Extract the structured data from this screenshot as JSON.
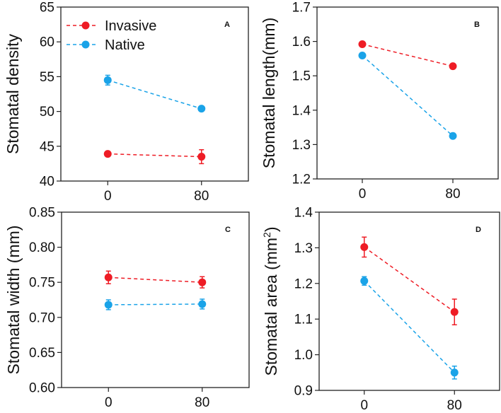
{
  "chart_data": [
    {
      "type": "line",
      "panel_label": "A",
      "ylabel": "Stomatal density",
      "ylabel_sup": "",
      "ylabel_tail": "",
      "x": [
        0,
        80
      ],
      "xticks": [
        "0",
        "80"
      ],
      "xlim": [
        -40,
        120
      ],
      "ylim": [
        40,
        65
      ],
      "yticks": [
        "40",
        "45",
        "50",
        "55",
        "60",
        "65"
      ],
      "legend": {
        "placement": "top-left",
        "entries": [
          "Invasive",
          "Native"
        ]
      },
      "series": [
        {
          "name": "Invasive",
          "color": "#ee1c25",
          "values": [
            43.9,
            43.5
          ],
          "errors": [
            0.3,
            1.0
          ]
        },
        {
          "name": "Native",
          "color": "#1aa3e8",
          "values": [
            54.5,
            50.4
          ],
          "errors": [
            0.7,
            0.3
          ]
        }
      ]
    },
    {
      "type": "line",
      "panel_label": "B",
      "ylabel": "Stomatal length(mm)",
      "ylabel_sup": "",
      "ylabel_tail": "",
      "x": [
        0,
        80
      ],
      "xticks": [
        "0",
        "80"
      ],
      "xlim": [
        -40,
        120
      ],
      "ylim": [
        1.2,
        1.7
      ],
      "yticks": [
        "1.2",
        "1.3",
        "1.4",
        "1.5",
        "1.6",
        "1.7"
      ],
      "series": [
        {
          "name": "Invasive",
          "color": "#ee1c25",
          "values": [
            1.592,
            1.528
          ],
          "errors": [
            0.005,
            0.005
          ]
        },
        {
          "name": "Native",
          "color": "#1aa3e8",
          "values": [
            1.559,
            1.325
          ],
          "errors": [
            0.005,
            0.005
          ]
        }
      ]
    },
    {
      "type": "line",
      "panel_label": "C",
      "ylabel": "Stomatal width (mm)",
      "ylabel_sup": "",
      "ylabel_tail": "",
      "x": [
        0,
        80
      ],
      "xticks": [
        "0",
        "80"
      ],
      "xlim": [
        -40,
        120
      ],
      "ylim": [
        0.6,
        0.85
      ],
      "yticks": [
        "0.60",
        "0.65",
        "0.70",
        "0.75",
        "0.80",
        "0.85"
      ],
      "series": [
        {
          "name": "Invasive",
          "color": "#ee1c25",
          "values": [
            0.757,
            0.75
          ],
          "errors": [
            0.009,
            0.008
          ]
        },
        {
          "name": "Native",
          "color": "#1aa3e8",
          "values": [
            0.718,
            0.719
          ],
          "errors": [
            0.007,
            0.007
          ]
        }
      ]
    },
    {
      "type": "line",
      "panel_label": "D",
      "ylabel": "Stomatal area (mm",
      "ylabel_sup": "2",
      "ylabel_tail": ")",
      "x": [
        0,
        80
      ],
      "xticks": [
        "0",
        "80"
      ],
      "xlim": [
        -40,
        120
      ],
      "ylim": [
        0.9,
        1.4
      ],
      "yticks": [
        "0.9",
        "1.0",
        "1.1",
        "1.2",
        "1.3",
        "1.4"
      ],
      "series": [
        {
          "name": "Invasive",
          "color": "#ee1c25",
          "values": [
            1.302,
            1.12
          ],
          "errors": [
            0.028,
            0.036
          ]
        },
        {
          "name": "Native",
          "color": "#1aa3e8",
          "values": [
            1.207,
            0.95
          ],
          "errors": [
            0.012,
            0.018
          ]
        }
      ]
    }
  ]
}
